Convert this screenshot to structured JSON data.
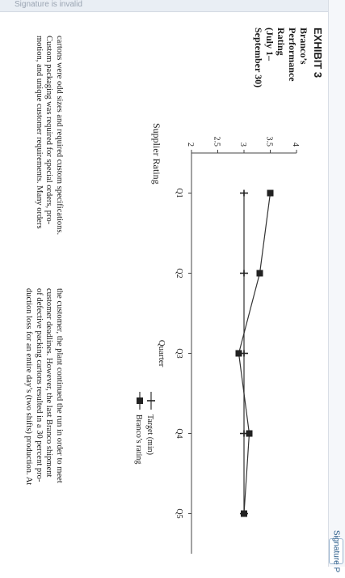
{
  "header": {
    "topbar_text": "Signature is invalid",
    "signature_button": "Signature P"
  },
  "exhibit": {
    "title": "EXHIBIT 3",
    "subtitle_lines": [
      "Branco’s",
      "Performance",
      "Rating",
      "(July 1–",
      "September 30)"
    ]
  },
  "chart_data": {
    "type": "line",
    "title": "Supplier Rating",
    "xlabel": "Quarter",
    "ylabel": "",
    "categories": [
      "Q1",
      "Q2",
      "Q3",
      "Q4",
      "Q5"
    ],
    "ylim": [
      2,
      4
    ],
    "yticks": [
      "2",
      "2.5",
      "3",
      "3.5",
      "4"
    ],
    "series": [
      {
        "name": "Target (min)",
        "values": [
          3,
          3,
          3,
          3,
          3
        ],
        "marker": "plus"
      },
      {
        "name": "Branco’s rating",
        "values": [
          3.5,
          3.3,
          2.9,
          3.1,
          3.0
        ],
        "marker": "square"
      }
    ],
    "legend": "lower-right"
  },
  "body": {
    "col1": [
      "cartons were odd sizes and required custom specifications.",
      "Custom packaging was required for special orders, pro-",
      "motion, and unique customer requirements. Many orders"
    ],
    "col2": [
      "the customer, the plant continued the run in order to meet",
      "customer deadlines. However, the last Branco shipment",
      "of defective packing cartons resulted in a 30 percent pro-",
      "duction loss for an entire day’s (two shifts) production. At"
    ]
  }
}
